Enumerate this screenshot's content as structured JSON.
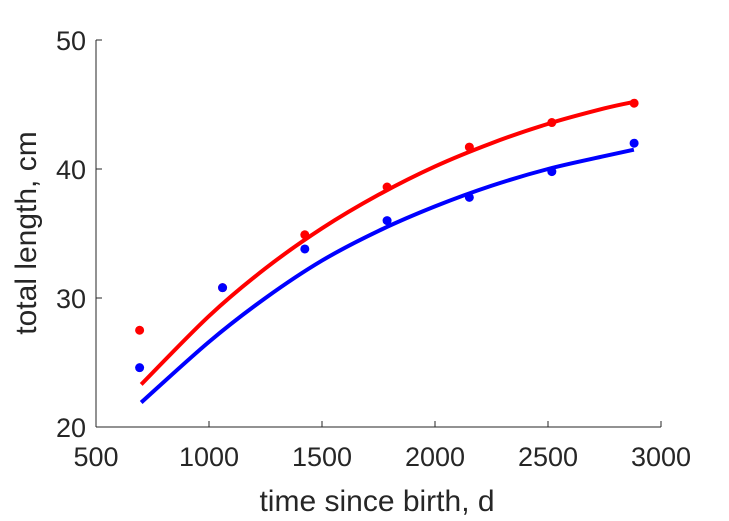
{
  "chart_data": {
    "type": "scatter",
    "xlabel": "time since birth, d",
    "ylabel": "total length, cm",
    "xlim": [
      500,
      3000
    ],
    "ylim": [
      20,
      50
    ],
    "xticks": [
      500,
      1000,
      1500,
      2000,
      2500,
      3000
    ],
    "yticks": [
      20,
      30,
      40,
      50
    ],
    "xtick_labels": [
      "500",
      "1000",
      "1500",
      "2000",
      "2500",
      "3000"
    ],
    "ytick_labels": [
      "20",
      "30",
      "40",
      "50"
    ],
    "grid": false,
    "series": [
      {
        "color": "#ff0000",
        "points": [
          {
            "x": 693,
            "y": 27.5
          },
          {
            "x": 1060,
            "y": 30.8
          },
          {
            "x": 1424,
            "y": 34.9
          },
          {
            "x": 1788,
            "y": 38.6
          },
          {
            "x": 2152,
            "y": 41.7
          },
          {
            "x": 2517,
            "y": 43.6
          },
          {
            "x": 2881,
            "y": 45.1
          }
        ],
        "fit_curve": [
          {
            "x": 700,
            "y": 23.3
          },
          {
            "x": 1000,
            "y": 28.6
          },
          {
            "x": 1250,
            "y": 32.3
          },
          {
            "x": 1500,
            "y": 35.4
          },
          {
            "x": 1750,
            "y": 38.0
          },
          {
            "x": 2000,
            "y": 40.2
          },
          {
            "x": 2250,
            "y": 42.0
          },
          {
            "x": 2500,
            "y": 43.5
          },
          {
            "x": 2750,
            "y": 44.7
          },
          {
            "x": 2880,
            "y": 45.2
          }
        ]
      },
      {
        "color": "#0000ff",
        "points": [
          {
            "x": 693,
            "y": 24.6
          },
          {
            "x": 1060,
            "y": 30.8
          },
          {
            "x": 1424,
            "y": 33.8
          },
          {
            "x": 1788,
            "y": 36.0
          },
          {
            "x": 2152,
            "y": 37.8
          },
          {
            "x": 2517,
            "y": 39.8
          },
          {
            "x": 2881,
            "y": 42.0
          }
        ],
        "fit_curve": [
          {
            "x": 700,
            "y": 21.9
          },
          {
            "x": 1000,
            "y": 26.6
          },
          {
            "x": 1250,
            "y": 30.0
          },
          {
            "x": 1500,
            "y": 32.9
          },
          {
            "x": 1750,
            "y": 35.2
          },
          {
            "x": 2000,
            "y": 37.1
          },
          {
            "x": 2250,
            "y": 38.7
          },
          {
            "x": 2500,
            "y": 40.0
          },
          {
            "x": 2750,
            "y": 41.0
          },
          {
            "x": 2880,
            "y": 41.5
          }
        ]
      }
    ]
  }
}
